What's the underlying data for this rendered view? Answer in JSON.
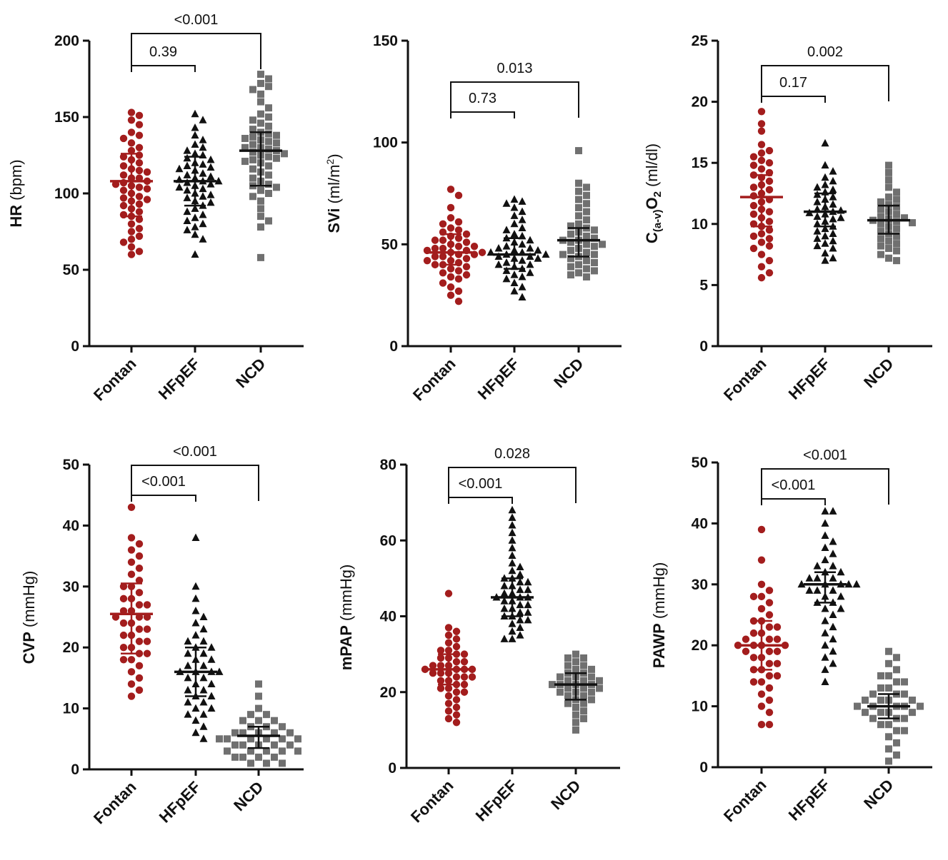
{
  "chart_data": [
    {
      "type": "scatter",
      "ylabel_main": "HR",
      "ylabel_unit": "(bpm)",
      "ylim": [
        0,
        200
      ],
      "yticks": [
        0,
        50,
        100,
        150,
        200
      ],
      "categories": [
        "Fontan",
        "HFpEF",
        "NCD"
      ],
      "groups": [
        {
          "name": "Fontan",
          "marker": "circle",
          "color": "#a31d1d",
          "median": 108,
          "q1": 85,
          "q3": 126,
          "values": [
            153,
            151,
            148,
            145,
            140,
            138,
            136,
            133,
            130,
            128,
            125,
            124,
            122,
            120,
            118,
            116,
            115,
            114,
            112,
            110,
            110,
            108,
            107,
            106,
            105,
            104,
            103,
            102,
            100,
            98,
            97,
            96,
            95,
            93,
            92,
            90,
            88,
            86,
            85,
            83,
            80,
            77,
            75,
            72,
            70,
            68,
            65,
            62,
            60
          ]
        },
        {
          "name": "HFpEF",
          "marker": "triangle",
          "color": "#111111",
          "median": 108,
          "q1": 92,
          "q3": 124,
          "values": [
            152,
            148,
            143,
            138,
            135,
            132,
            130,
            128,
            126,
            125,
            123,
            122,
            120,
            119,
            118,
            117,
            116,
            115,
            113,
            112,
            111,
            110,
            109,
            108,
            108,
            107,
            106,
            105,
            104,
            103,
            102,
            100,
            99,
            98,
            97,
            95,
            94,
            92,
            90,
            88,
            86,
            84,
            82,
            80,
            78,
            76,
            73,
            70,
            60
          ]
        },
        {
          "name": "NCD",
          "marker": "square",
          "color": "#707070",
          "median": 128,
          "q1": 105,
          "q3": 140,
          "values": [
            178,
            175,
            172,
            170,
            168,
            165,
            160,
            156,
            152,
            150,
            148,
            146,
            144,
            142,
            140,
            139,
            138,
            137,
            136,
            135,
            134,
            133,
            132,
            130,
            130,
            129,
            128,
            127,
            126,
            125,
            124,
            123,
            122,
            121,
            120,
            118,
            116,
            114,
            112,
            110,
            108,
            106,
            105,
            104,
            102,
            100,
            98,
            95,
            90,
            85,
            82,
            78,
            58
          ]
        }
      ],
      "comparisons": [
        {
          "from": "Fontan",
          "to": "HFpEF",
          "p": "0.39"
        },
        {
          "from": "Fontan",
          "to": "NCD",
          "p": "<0.001"
        }
      ]
    },
    {
      "type": "scatter",
      "ylabel_main": "SVi",
      "ylabel_unit": "(ml/m",
      "ylabel_sup": "2",
      "ylabel_end": ")",
      "ylim": [
        0,
        150
      ],
      "yticks": [
        0,
        50,
        100,
        150
      ],
      "categories": [
        "Fontan",
        "HFpEF",
        "NCD"
      ],
      "groups": [
        {
          "name": "Fontan",
          "marker": "circle",
          "color": "#a31d1d",
          "median": 46,
          "q1": 40,
          "q3": 55,
          "values": [
            77,
            74,
            68,
            63,
            61,
            60,
            58,
            57,
            56,
            55,
            54,
            53,
            52,
            52,
            51,
            50,
            49,
            49,
            48,
            48,
            47,
            47,
            46,
            46,
            45,
            45,
            44,
            44,
            43,
            42,
            42,
            41,
            40,
            40,
            39,
            38,
            37,
            36,
            35,
            34,
            33,
            31,
            29,
            27,
            25,
            22
          ]
        },
        {
          "name": "HFpEF",
          "marker": "triangle",
          "color": "#111111",
          "median": 45,
          "q1": 38,
          "q3": 53,
          "values": [
            72,
            71,
            70,
            68,
            66,
            64,
            62,
            60,
            58,
            57,
            55,
            54,
            53,
            52,
            51,
            50,
            49,
            48,
            48,
            47,
            47,
            46,
            46,
            45,
            45,
            44,
            44,
            43,
            43,
            42,
            41,
            40,
            40,
            39,
            38,
            37,
            36,
            35,
            34,
            33,
            31,
            29,
            27,
            24
          ]
        },
        {
          "name": "NCD",
          "marker": "square",
          "color": "#707070",
          "median": 52,
          "q1": 44,
          "q3": 58,
          "values": [
            96,
            80,
            78,
            76,
            74,
            72,
            70,
            68,
            66,
            64,
            62,
            60,
            59,
            58,
            57,
            56,
            55,
            54,
            53,
            52,
            52,
            51,
            50,
            50,
            49,
            48,
            47,
            46,
            45,
            45,
            44,
            43,
            42,
            41,
            40,
            39,
            38,
            37,
            36,
            35,
            34
          ]
        }
      ],
      "comparisons": [
        {
          "from": "Fontan",
          "to": "HFpEF",
          "p": "0.73"
        },
        {
          "from": "Fontan",
          "to": "NCD",
          "p": "0.013"
        }
      ]
    },
    {
      "type": "scatter",
      "ylabel_main": "C",
      "ylabel_sub": "(a-v)",
      "ylabel_mid": "O",
      "ylabel_sub2": "2",
      "ylabel_unit": "(ml/dl)",
      "ylim": [
        0,
        25
      ],
      "yticks": [
        0,
        5,
        10,
        15,
        20,
        25
      ],
      "categories": [
        "Fontan",
        "HFpEF",
        "NCD"
      ],
      "groups": [
        {
          "name": "Fontan",
          "marker": "circle",
          "color": "#a31d1d",
          "median": 12.2,
          "q1": 9.8,
          "q3": 14.0,
          "values": [
            19.2,
            18.2,
            17.6,
            16.5,
            16.0,
            15.8,
            15.5,
            15.2,
            15.0,
            14.8,
            14.5,
            14.2,
            14.0,
            13.8,
            13.5,
            13.2,
            13.0,
            12.8,
            12.5,
            12.3,
            12.0,
            11.8,
            11.5,
            11.2,
            11.0,
            10.8,
            10.5,
            10.2,
            10.0,
            9.8,
            9.5,
            9.2,
            9.0,
            8.8,
            8.5,
            8.2,
            8.0,
            7.5,
            7.0,
            6.5,
            6.0,
            5.6
          ]
        },
        {
          "name": "HFpEF",
          "marker": "triangle",
          "color": "#111111",
          "median": 11.0,
          "q1": 9.8,
          "q3": 12.5,
          "values": [
            16.6,
            14.8,
            14.3,
            13.8,
            13.5,
            13.2,
            13.0,
            12.8,
            12.6,
            12.4,
            12.2,
            12.0,
            11.8,
            11.6,
            11.4,
            11.2,
            11.1,
            11.0,
            10.9,
            10.8,
            10.6,
            10.5,
            10.4,
            10.2,
            10.0,
            9.8,
            9.6,
            9.4,
            9.2,
            9.0,
            8.8,
            8.6,
            8.4,
            8.2,
            8.0,
            7.6,
            7.2,
            7.0
          ]
        },
        {
          "name": "NCD",
          "marker": "square",
          "color": "#707070",
          "median": 10.3,
          "q1": 9.2,
          "q3": 11.5,
          "values": [
            14.8,
            14.2,
            13.6,
            13.0,
            12.6,
            12.2,
            12.0,
            11.8,
            11.6,
            11.4,
            11.2,
            11.0,
            10.8,
            10.6,
            10.5,
            10.4,
            10.3,
            10.2,
            10.1,
            10.0,
            9.8,
            9.6,
            9.4,
            9.2,
            9.0,
            8.8,
            8.6,
            8.4,
            8.2,
            8.0,
            7.8,
            7.5,
            7.2,
            7.0
          ]
        }
      ],
      "comparisons": [
        {
          "from": "Fontan",
          "to": "HFpEF",
          "p": "0.17"
        },
        {
          "from": "Fontan",
          "to": "NCD",
          "p": "0.002"
        }
      ]
    },
    {
      "type": "scatter",
      "ylabel_main": "CVP",
      "ylabel_unit": "(mmHg)",
      "ylim": [
        0,
        50
      ],
      "yticks": [
        0,
        10,
        20,
        30,
        40,
        50
      ],
      "categories": [
        "Fontan",
        "HFpEF",
        "NCD"
      ],
      "groups": [
        {
          "name": "Fontan",
          "marker": "circle",
          "color": "#a31d1d",
          "median": 25.5,
          "q1": 19,
          "q3": 30.5,
          "values": [
            43,
            38,
            37,
            36,
            35,
            34,
            33,
            32,
            31,
            30,
            30,
            29,
            28,
            28,
            27,
            27,
            26,
            26,
            25,
            25,
            25,
            24,
            24,
            23,
            23,
            22,
            22,
            21,
            21,
            20,
            20,
            19,
            19,
            18,
            18,
            17,
            16,
            15,
            14,
            13,
            12
          ]
        },
        {
          "name": "HFpEF",
          "marker": "triangle",
          "color": "#111111",
          "median": 16,
          "q1": 12,
          "q3": 20,
          "values": [
            38,
            30,
            28,
            26,
            25,
            24,
            23,
            22,
            21,
            21,
            20,
            20,
            19,
            19,
            18,
            18,
            17,
            17,
            16,
            16,
            16,
            16,
            15,
            15,
            14,
            14,
            13,
            13,
            12,
            12,
            11,
            11,
            10,
            10,
            9,
            9,
            8,
            7,
            6,
            5
          ]
        },
        {
          "name": "NCD",
          "marker": "square",
          "color": "#707070",
          "median": 5.5,
          "q1": 3.5,
          "q3": 7,
          "values": [
            14,
            12,
            10,
            9,
            9,
            8,
            8,
            8,
            7,
            7,
            7,
            6,
            6,
            6,
            6,
            6,
            5,
            5,
            5,
            5,
            5,
            5,
            4,
            4,
            4,
            4,
            4,
            3,
            3,
            3,
            3,
            3,
            2,
            2,
            2,
            2,
            1,
            1,
            1
          ]
        }
      ],
      "comparisons": [
        {
          "from": "Fontan",
          "to": "HFpEF",
          "p": "<0.001"
        },
        {
          "from": "Fontan",
          "to": "NCD",
          "p": "<0.001"
        }
      ]
    },
    {
      "type": "scatter",
      "ylabel_main": "mPAP",
      "ylabel_unit": "(mmHg)",
      "ylim": [
        0,
        80
      ],
      "yticks": [
        0,
        20,
        40,
        60,
        80
      ],
      "categories": [
        "Fontan",
        "HFpEF",
        "NCD"
      ],
      "groups": [
        {
          "name": "Fontan",
          "marker": "circle",
          "color": "#a31d1d",
          "median": 26,
          "q1": 22,
          "q3": 30,
          "values": [
            46,
            37,
            36,
            35,
            34,
            33,
            32,
            31,
            31,
            30,
            30,
            29,
            29,
            28,
            28,
            27,
            27,
            27,
            26,
            26,
            26,
            26,
            25,
            25,
            25,
            24,
            24,
            24,
            23,
            23,
            22,
            22,
            21,
            21,
            20,
            20,
            19,
            18,
            17,
            16,
            15,
            14,
            13,
            12
          ]
        },
        {
          "name": "HFpEF",
          "marker": "triangle",
          "color": "#111111",
          "median": 45,
          "q1": 40,
          "q3": 50,
          "values": [
            68,
            66,
            64,
            62,
            60,
            58,
            56,
            54,
            53,
            52,
            51,
            50,
            50,
            49,
            49,
            48,
            48,
            47,
            47,
            46,
            46,
            45,
            45,
            45,
            44,
            44,
            43,
            43,
            42,
            42,
            41,
            41,
            40,
            40,
            39,
            39,
            38,
            37,
            36,
            35,
            34,
            34
          ]
        },
        {
          "name": "NCD",
          "marker": "square",
          "color": "#707070",
          "median": 22,
          "q1": 18,
          "q3": 25,
          "values": [
            30,
            29,
            29,
            28,
            27,
            27,
            26,
            26,
            25,
            25,
            24,
            24,
            24,
            23,
            23,
            23,
            22,
            22,
            22,
            22,
            21,
            21,
            21,
            20,
            20,
            20,
            19,
            19,
            18,
            18,
            17,
            17,
            16,
            15,
            14,
            13,
            12,
            10
          ]
        }
      ],
      "comparisons": [
        {
          "from": "Fontan",
          "to": "HFpEF",
          "p": "<0.001"
        },
        {
          "from": "Fontan",
          "to": "NCD",
          "p": "0.028"
        }
      ]
    },
    {
      "type": "scatter",
      "ylabel_main": "PAWP",
      "ylabel_unit": "(mmHg)",
      "ylim": [
        0,
        50
      ],
      "yticks": [
        0,
        10,
        20,
        30,
        40,
        50
      ],
      "categories": [
        "Fontan",
        "HFpEF",
        "NCD"
      ],
      "groups": [
        {
          "name": "Fontan",
          "marker": "circle",
          "color": "#a31d1d",
          "median": 20,
          "q1": 16,
          "q3": 24,
          "values": [
            39,
            34,
            30,
            29,
            28,
            28,
            27,
            26,
            25,
            24,
            24,
            23,
            23,
            22,
            22,
            21,
            21,
            21,
            20,
            20,
            20,
            20,
            19,
            19,
            19,
            18,
            18,
            17,
            17,
            16,
            16,
            15,
            15,
            14,
            14,
            13,
            12,
            11,
            10,
            9,
            7,
            7
          ]
        },
        {
          "name": "HFpEF",
          "marker": "triangle",
          "color": "#111111",
          "median": 30,
          "q1": 27,
          "q3": 32,
          "values": [
            42,
            42,
            40,
            38,
            37,
            36,
            35,
            34,
            33,
            33,
            32,
            32,
            31,
            31,
            31,
            30,
            30,
            30,
            30,
            30,
            29,
            29,
            29,
            28,
            28,
            27,
            27,
            26,
            26,
            25,
            24,
            23,
            22,
            21,
            20,
            19,
            18,
            17,
            16,
            14
          ]
        },
        {
          "name": "NCD",
          "marker": "square",
          "color": "#707070",
          "median": 10,
          "q1": 8,
          "q3": 12,
          "values": [
            19,
            18,
            17,
            16,
            15,
            15,
            14,
            14,
            13,
            13,
            12,
            12,
            12,
            11,
            11,
            11,
            11,
            10,
            10,
            10,
            10,
            10,
            9,
            9,
            9,
            9,
            8,
            8,
            8,
            7,
            7,
            6,
            6,
            5,
            4,
            3,
            2,
            1
          ]
        }
      ],
      "comparisons": [
        {
          "from": "Fontan",
          "to": "HFpEF",
          "p": "<0.001"
        },
        {
          "from": "Fontan",
          "to": "NCD",
          "p": "<0.001"
        }
      ]
    }
  ]
}
